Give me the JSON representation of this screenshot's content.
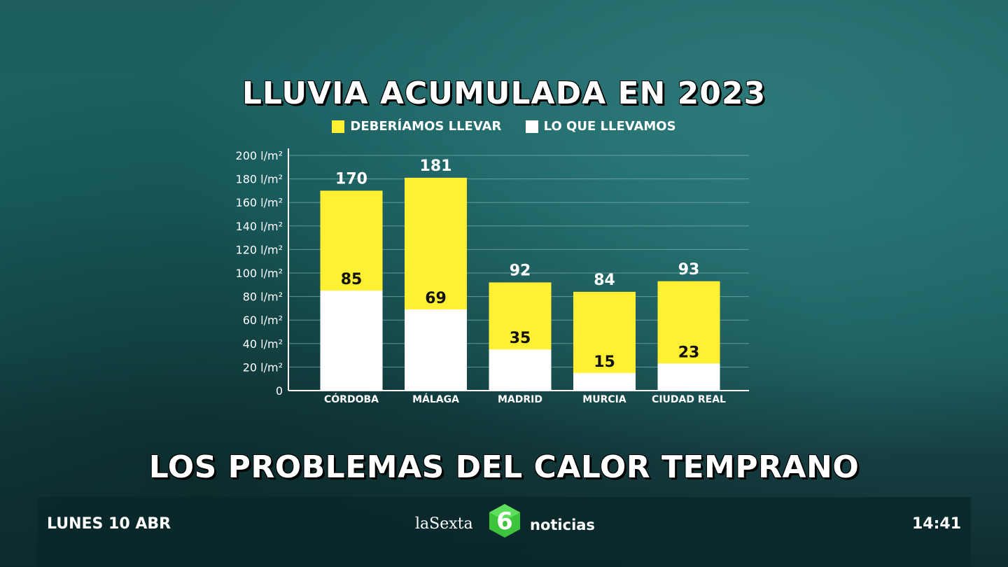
{
  "chart_data": {
    "type": "bar",
    "title": "LLUVIA ACUMULADA EN 2023",
    "categories": [
      "CÓRDOBA",
      "MÁLAGA",
      "MADRID",
      "MURCIA",
      "CIUDAD REAL"
    ],
    "series": [
      {
        "name": "DEBERÍAMOS LLEVAR",
        "color": "#fff033",
        "values": [
          170,
          181,
          92,
          84,
          93
        ]
      },
      {
        "name": "LO QUE LLEVAMOS",
        "color": "#ffffff",
        "values": [
          85,
          69,
          35,
          15,
          23
        ]
      }
    ],
    "ylim": [
      0,
      200
    ],
    "yticks": [
      0,
      20,
      40,
      60,
      80,
      100,
      120,
      140,
      160,
      180,
      200
    ],
    "ytick_labels": [
      "0",
      "20 l/m²",
      "40 l/m²",
      "60 l/m²",
      "80 l/m²",
      "100 l/m²",
      "120 l/m²",
      "140 l/m²",
      "160 l/m²",
      "180 l/m²",
      "200 l/m²"
    ],
    "grid": true,
    "legend": "top-center",
    "overlay": true
  },
  "headline": "LOS PROBLEMAS DEL CALOR TEMPRANO",
  "ticker": {
    "date": "LUNES 10 ABR",
    "time": "14:41",
    "brand": "laSexta",
    "brand_mark": "6",
    "brand_section": "noticias"
  },
  "colors": {
    "accent_yellow": "#fff033",
    "logo_green": "#3cc43c",
    "grid": "#7fb3b3"
  }
}
